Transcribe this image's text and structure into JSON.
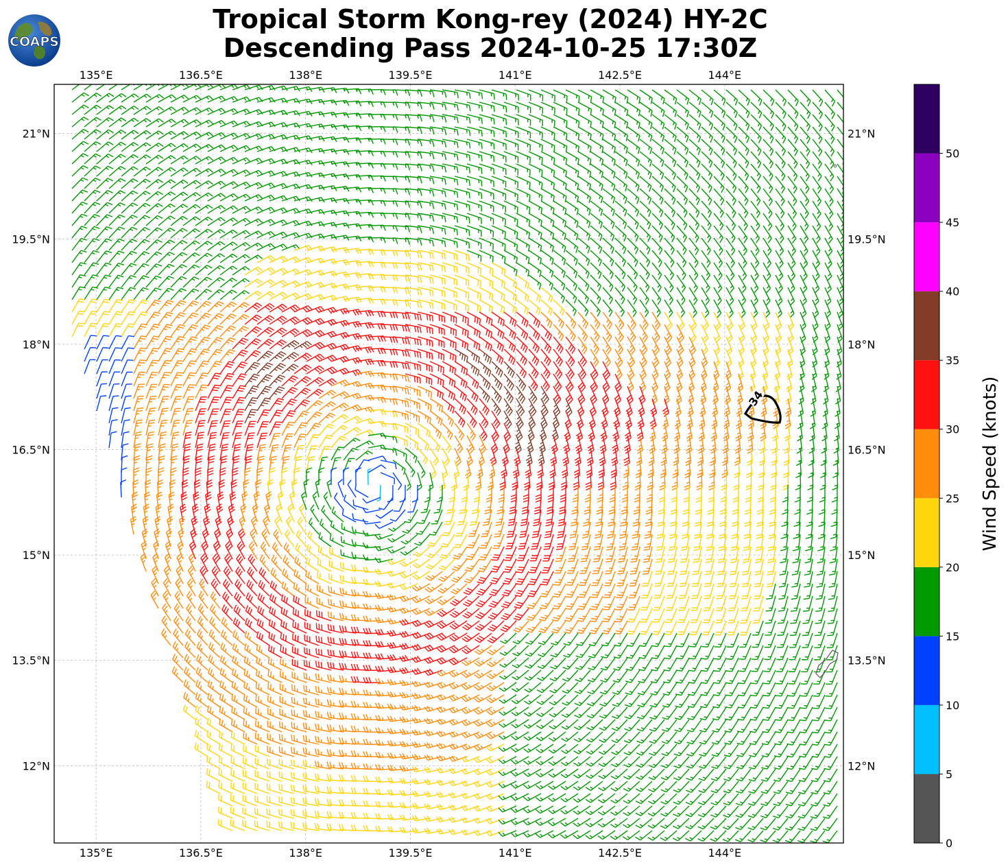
{
  "title": {
    "line1": "Tropical Storm Kong-rey (2024) HY-2C",
    "line2": "Descending Pass 2024-10-25 17:30Z"
  },
  "logo": {
    "text": "COAPS",
    "icon": "globe-logo-icon"
  },
  "map": {
    "lon_range": [
      134.4,
      145.7
    ],
    "lat_range": [
      10.9,
      21.7
    ],
    "lon_ticks": [
      {
        "value": 135.0,
        "label": "135°E"
      },
      {
        "value": 136.5,
        "label": "136.5°E"
      },
      {
        "value": 138.0,
        "label": "138°E"
      },
      {
        "value": 139.5,
        "label": "139.5°E"
      },
      {
        "value": 141.0,
        "label": "141°E"
      },
      {
        "value": 142.5,
        "label": "142.5°E"
      },
      {
        "value": 144.0,
        "label": "144°E"
      }
    ],
    "lat_ticks": [
      {
        "value": 21.0,
        "label": "21°N"
      },
      {
        "value": 19.5,
        "label": "19.5°N"
      },
      {
        "value": 18.0,
        "label": "18°N"
      },
      {
        "value": 16.5,
        "label": "16.5°N"
      },
      {
        "value": 15.0,
        "label": "15°N"
      },
      {
        "value": 13.5,
        "label": "13.5°N"
      },
      {
        "value": 12.0,
        "label": "12°N"
      }
    ],
    "gridlines": true,
    "storm_center": {
      "lon": 139.0,
      "lat": 16.0
    },
    "contour": {
      "label": "34",
      "center_lon": 144.1,
      "center_lat": 17.1,
      "units": "knots"
    },
    "island": {
      "name": "Guam",
      "lon": 145.2,
      "lat": 13.5
    }
  },
  "colorbar": {
    "label": "Wind Speed (knots)",
    "tick_labels": [
      "0",
      "5",
      "10",
      "15",
      "20",
      "25",
      "30",
      "35",
      "40",
      "45",
      "50"
    ],
    "bins": [
      {
        "min": 0,
        "max": 5,
        "color": "#555555"
      },
      {
        "min": 5,
        "max": 10,
        "color": "#00bfff"
      },
      {
        "min": 10,
        "max": 15,
        "color": "#0040ff"
      },
      {
        "min": 15,
        "max": 20,
        "color": "#009a00"
      },
      {
        "min": 20,
        "max": 25,
        "color": "#ffd50c"
      },
      {
        "min": 25,
        "max": 30,
        "color": "#ff8c0a"
      },
      {
        "min": 30,
        "max": 35,
        "color": "#ff0f0f"
      },
      {
        "min": 35,
        "max": 40,
        "color": "#823c28"
      },
      {
        "min": 40,
        "max": 45,
        "color": "#ff00ff"
      },
      {
        "min": 45,
        "max": 50,
        "color": "#8c00c0"
      },
      {
        "min": 50,
        "max": 55,
        "color": "#2e0060"
      }
    ]
  }
}
